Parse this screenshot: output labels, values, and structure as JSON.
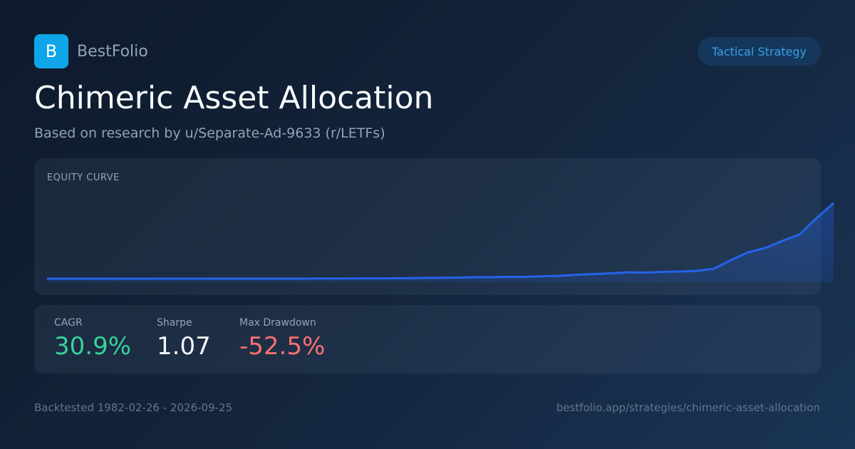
{
  "brand": {
    "logo": "B",
    "name": "BestFolio"
  },
  "badge": "Tactical Strategy",
  "title": "Chimeric Asset Allocation",
  "subtitle": "Based on research by u/Separate-Ad-9633 (r/LETFs)",
  "equity_curve": {
    "type": "area",
    "label": "EQUITY CURVE",
    "color": "#2563eb",
    "values": [
      5,
      5,
      5,
      5,
      5,
      5,
      5,
      5,
      5,
      5,
      5,
      5,
      5,
      5,
      5,
      5,
      5.2,
      5.3,
      5.3,
      5.4,
      5.5,
      5.6,
      6,
      6.2,
      6.5,
      7,
      7,
      7.5,
      7.5,
      8.3,
      9,
      10.5,
      11.5,
      12.5,
      14,
      13.5,
      14.5,
      15,
      16,
      19,
      31,
      42,
      48,
      58,
      67,
      90,
      111
    ]
  },
  "metrics": [
    {
      "label": "CAGR",
      "value": "30.9%",
      "color": "#34d399"
    },
    {
      "label": "Sharpe",
      "value": "1.07",
      "color": "#f1f5f9"
    },
    {
      "label": "Max Drawdown",
      "value": "-52.5%",
      "color": "#f87171"
    }
  ],
  "footer": {
    "left": "Backtested 1982-02-26 - 2026-09-25",
    "right": "bestfolio.app/strategies/chimeric-asset-allocation"
  }
}
